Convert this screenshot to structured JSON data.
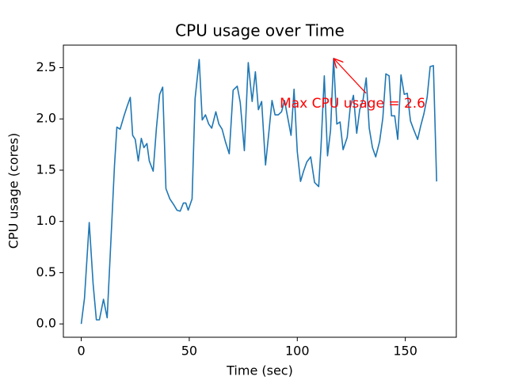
{
  "chart_data": {
    "type": "line",
    "title": "CPU usage over Time",
    "x_label": "Time (sec)",
    "y_label": "CPU usage (cores)",
    "series": [
      {
        "name": "CPU usage",
        "color": "#1f77b4",
        "x": [
          0,
          1.5,
          3.7,
          5.5,
          7,
          8.4,
          10.3,
          12,
          14,
          15.4,
          16.5,
          18,
          19.8,
          21.2,
          22.7,
          23.8,
          25,
          26.4,
          27.8,
          29,
          30.4,
          31.5,
          33.3,
          34.8,
          36.3,
          37.7,
          39.2,
          41,
          42.9,
          44.3,
          45.8,
          47.3,
          48.4,
          49.5,
          51.3,
          52.7,
          54.6,
          56,
          57.5,
          59,
          60.4,
          62.3,
          63.7,
          65.2,
          66.7,
          68.5,
          70.3,
          72.2,
          73.6,
          75.5,
          77.3,
          79.1,
          80.6,
          82,
          83.5,
          85.3,
          86.8,
          88.3,
          89.7,
          91.2,
          92.7,
          94.1,
          95.6,
          97.1,
          98.5,
          100,
          101.5,
          102.9,
          104.4,
          106.2,
          108,
          109.9,
          111,
          112.5,
          114,
          115.4,
          116.8,
          118.3,
          119.8,
          121.2,
          123.1,
          124.5,
          126,
          127.5,
          128.9,
          130.4,
          131.9,
          133.3,
          134.8,
          136.3,
          138.1,
          139.6,
          141,
          142.5,
          143.6,
          145.1,
          146.5,
          148,
          149.5,
          150.9,
          152.4,
          153.8,
          155.7,
          157.1,
          158.6,
          160.1,
          161.5,
          163,
          164.5
        ],
        "values": [
          0,
          0.25,
          0.99,
          0.39,
          0.04,
          0.04,
          0.24,
          0.06,
          0.93,
          1.55,
          1.92,
          1.9,
          2.03,
          2.12,
          2.21,
          1.84,
          1.8,
          1.59,
          1.81,
          1.72,
          1.76,
          1.59,
          1.49,
          1.91,
          2.24,
          2.31,
          1.32,
          1.22,
          1.16,
          1.11,
          1.1,
          1.18,
          1.18,
          1.11,
          1.22,
          2.2,
          2.58,
          1.99,
          2.04,
          1.95,
          1.91,
          2.07,
          1.95,
          1.9,
          1.78,
          1.66,
          2.28,
          2.32,
          2.16,
          1.69,
          2.55,
          2.17,
          2.46,
          2.09,
          2.17,
          1.55,
          1.86,
          2.18,
          2.04,
          2.04,
          2.07,
          2.18,
          2.01,
          1.84,
          2.29,
          1.68,
          1.39,
          1.49,
          1.58,
          1.63,
          1.38,
          1.34,
          1.74,
          2.42,
          1.64,
          1.89,
          2.59,
          1.95,
          1.97,
          1.7,
          1.82,
          2.11,
          2.23,
          1.86,
          2.09,
          2.18,
          2.4,
          1.91,
          1.72,
          1.63,
          1.78,
          2.01,
          2.44,
          2.42,
          2.03,
          2.03,
          1.8,
          2.43,
          2.24,
          2.25,
          1.98,
          1.9,
          1.8,
          1.93,
          2.05,
          2.21,
          2.51,
          2.52,
          1.39
        ]
      }
    ],
    "annotation": {
      "text": "Max CPU usage = 2.6",
      "color": "red"
    },
    "xlim": [
      -8.27,
      173.6
    ],
    "xticks": [
      0,
      50,
      100,
      150
    ],
    "ylim": [
      -0.13,
      2.72
    ],
    "yticks": [
      {
        "value": 0,
        "label": "0.0"
      },
      {
        "value": 0.5,
        "label": "0.5"
      },
      {
        "value": 1,
        "label": "1.0"
      },
      {
        "value": 1.5,
        "label": "1.5"
      },
      {
        "value": 2,
        "label": "2.0"
      },
      {
        "value": 2.5,
        "label": "2.5"
      }
    ],
    "grid": false
  }
}
